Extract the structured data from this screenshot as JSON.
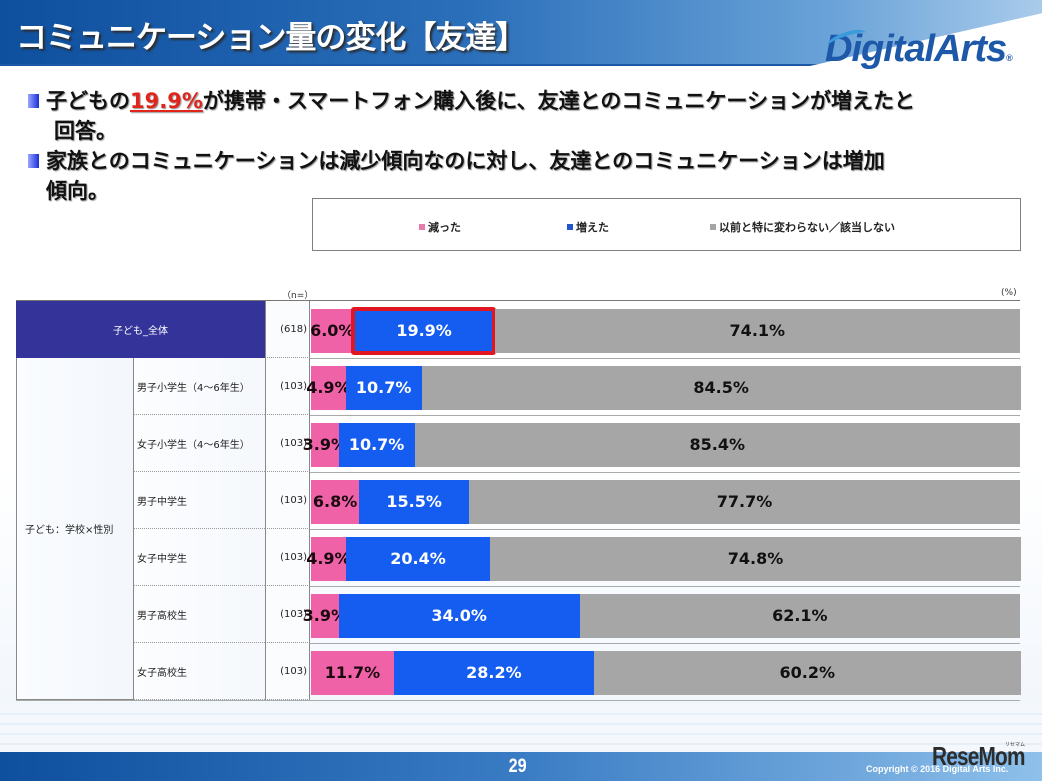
{
  "header": {
    "title": "コミュニケーション量の変化【友達】"
  },
  "logo": {
    "text": "DigitalArts",
    "registered": "®"
  },
  "bullets": [
    {
      "before": "子どもの",
      "highlight": "19.9%",
      "after": "が携帯・スマートフォン購入後に、友達とのコミュニケーションが増えたと",
      "continuation": "回答。"
    },
    {
      "before": "家族とのコミュニケーションは減少傾向なのに対し、友達とのコミュニケーションは増加",
      "highlight": "",
      "after": "",
      "continuation": "傾向。"
    }
  ],
  "colors": {
    "decreased": "#f062a8",
    "increased": "#155df0",
    "unchanged": "#a6a6a6",
    "total_label_bg": "#333399",
    "highlight_border": "#e01620",
    "highlight_text": "#e0261c"
  },
  "chart_data": {
    "type": "bar",
    "orientation": "horizontal-stacked-100",
    "title": "コミュニケーション量の変化【友達】",
    "n_label": "（n=）",
    "unit_label": "(%)",
    "xlim": [
      0,
      100
    ],
    "legend": {
      "placement": "top",
      "entries": [
        "減った",
        "増えた",
        "以前と特に変わらない／該当しない"
      ]
    },
    "group_label": "子ども：学校×性別",
    "categories": [
      "子ども_全体",
      "男子小学生（4～6年生）",
      "女子小学生（4～6年生）",
      "男子中学生",
      "女子中学生",
      "男子高校生",
      "女子高校生"
    ],
    "n": [
      "(618)",
      "(103)",
      "(103)",
      "(103)",
      "(103)",
      "(103)",
      "(103)"
    ],
    "series": [
      {
        "name": "減った",
        "values": [
          6.0,
          4.9,
          3.9,
          6.8,
          4.9,
          3.9,
          11.7
        ]
      },
      {
        "name": "増えた",
        "values": [
          19.9,
          10.7,
          10.7,
          15.5,
          20.4,
          34.0,
          28.2
        ]
      },
      {
        "name": "以前と特に変わらない／該当しない",
        "values": [
          74.1,
          84.5,
          85.4,
          77.7,
          74.8,
          62.1,
          60.2
        ]
      }
    ],
    "highlighted": {
      "category_index": 0,
      "series_index": 1,
      "value": 19.9
    }
  },
  "footer": {
    "page_number": "29",
    "copyright": "Copyright © 2016 Digital Arts Inc.",
    "watermark": "ReseMom",
    "watermark_ruby": "リセマム"
  }
}
